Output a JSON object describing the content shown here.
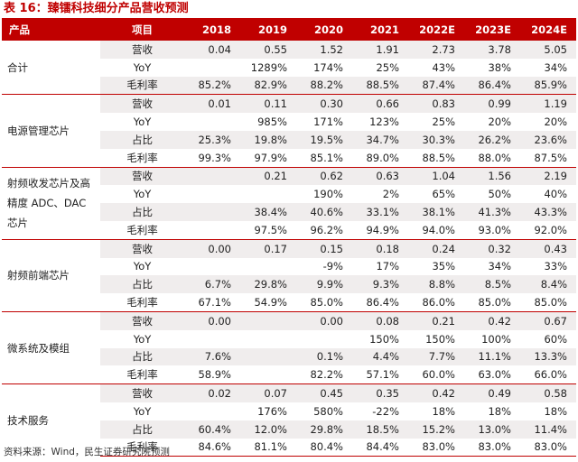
{
  "title": "表 16：臻镭科技细分产品营收预测",
  "source": "资料来源：Wind，民生证券研究院预测",
  "header": [
    "产品",
    "项目",
    "2018",
    "2019",
    "2020",
    "2021",
    "2022E",
    "2023E",
    "2024E"
  ],
  "groups": [
    {
      "product": "合计",
      "rows": [
        {
          "item": "营收",
          "values": [
            "0.04",
            "0.55",
            "1.52",
            "1.91",
            "2.73",
            "3.78",
            "5.05"
          ]
        },
        {
          "item": "YoY",
          "values": [
            "",
            "1289%",
            "174%",
            "25%",
            "43%",
            "38%",
            "34%"
          ]
        },
        {
          "item": "毛利率",
          "values": [
            "85.2%",
            "82.9%",
            "88.2%",
            "88.5%",
            "87.4%",
            "86.4%",
            "85.9%"
          ]
        }
      ]
    },
    {
      "product": "电源管理芯片",
      "rows": [
        {
          "item": "营收",
          "values": [
            "0.01",
            "0.11",
            "0.30",
            "0.66",
            "0.83",
            "0.99",
            "1.19"
          ]
        },
        {
          "item": "YoY",
          "values": [
            "",
            "985%",
            "171%",
            "123%",
            "25%",
            "20%",
            "20%"
          ]
        },
        {
          "item": "占比",
          "values": [
            "25.3%",
            "19.8%",
            "19.5%",
            "34.7%",
            "30.3%",
            "26.2%",
            "23.6%"
          ]
        },
        {
          "item": "毛利率",
          "values": [
            "99.3%",
            "97.9%",
            "85.1%",
            "89.0%",
            "88.5%",
            "88.0%",
            "87.5%"
          ]
        }
      ]
    },
    {
      "product": "射频收发芯片及高精度 ADC、DAC 芯片",
      "rows": [
        {
          "item": "营收",
          "values": [
            "",
            "0.21",
            "0.62",
            "0.63",
            "1.04",
            "1.56",
            "2.19"
          ]
        },
        {
          "item": "YoY",
          "values": [
            "",
            "",
            "190%",
            "2%",
            "65%",
            "50%",
            "40%"
          ]
        },
        {
          "item": "占比",
          "values": [
            "",
            "38.4%",
            "40.6%",
            "33.1%",
            "38.1%",
            "41.3%",
            "43.3%"
          ]
        },
        {
          "item": "毛利率",
          "values": [
            "",
            "97.5%",
            "96.2%",
            "94.9%",
            "94.0%",
            "93.0%",
            "92.0%"
          ]
        }
      ]
    },
    {
      "product": "射频前端芯片",
      "rows": [
        {
          "item": "营收",
          "values": [
            "0.00",
            "0.17",
            "0.15",
            "0.18",
            "0.24",
            "0.32",
            "0.43"
          ]
        },
        {
          "item": "YoY",
          "values": [
            "",
            "",
            "-9%",
            "17%",
            "35%",
            "34%",
            "33%"
          ]
        },
        {
          "item": "占比",
          "values": [
            "6.7%",
            "29.8%",
            "9.9%",
            "9.3%",
            "8.8%",
            "8.5%",
            "8.4%"
          ]
        },
        {
          "item": "毛利率",
          "values": [
            "67.1%",
            "54.9%",
            "85.0%",
            "86.4%",
            "86.0%",
            "85.0%",
            "85.0%"
          ]
        }
      ]
    },
    {
      "product": "微系统及模组",
      "rows": [
        {
          "item": "营收",
          "values": [
            "0.00",
            "",
            "0.00",
            "0.08",
            "0.21",
            "0.42",
            "0.67"
          ]
        },
        {
          "item": "YoY",
          "values": [
            "",
            "",
            "",
            "150%",
            "150%",
            "100%",
            "60%"
          ]
        },
        {
          "item": "占比",
          "values": [
            "7.6%",
            "",
            "0.1%",
            "4.4%",
            "7.7%",
            "11.1%",
            "13.3%"
          ]
        },
        {
          "item": "毛利率",
          "values": [
            "58.9%",
            "",
            "82.2%",
            "57.1%",
            "60.0%",
            "63.0%",
            "66.0%"
          ]
        }
      ]
    },
    {
      "product": "技术服务",
      "rows": [
        {
          "item": "营收",
          "values": [
            "0.02",
            "0.07",
            "0.45",
            "0.35",
            "0.42",
            "0.49",
            "0.58"
          ]
        },
        {
          "item": "YoY",
          "values": [
            "",
            "176%",
            "580%",
            "-22%",
            "18%",
            "18%",
            "18%"
          ]
        },
        {
          "item": "占比",
          "values": [
            "60.4%",
            "12.0%",
            "29.8%",
            "18.5%",
            "15.2%",
            "13.0%",
            "11.4%"
          ]
        },
        {
          "item": "毛利率",
          "values": [
            "84.6%",
            "81.1%",
            "80.4%",
            "84.4%",
            "83.0%",
            "83.0%",
            "83.0%"
          ]
        }
      ]
    }
  ]
}
